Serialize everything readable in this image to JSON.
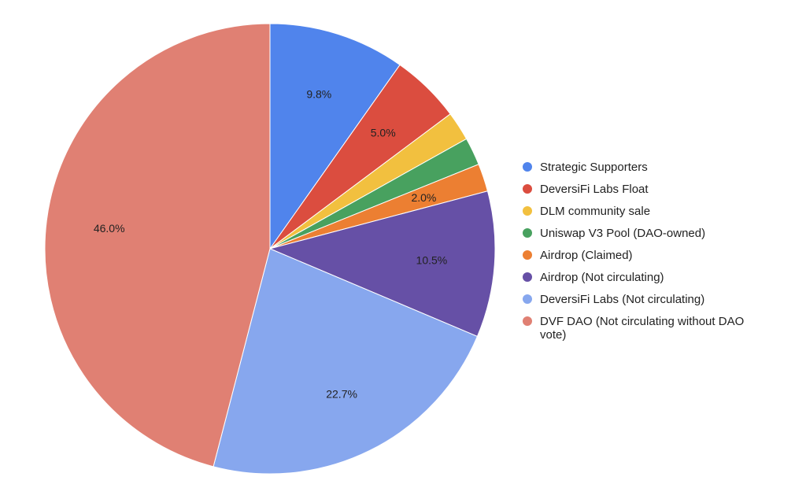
{
  "chart_data": {
    "type": "pie",
    "title": "",
    "legend_position": "right",
    "series": [
      {
        "name": "Strategic Supporters",
        "value": 9.8,
        "label": "9.8%",
        "color": "#5084ec"
      },
      {
        "name": "DeversiFi Labs Float",
        "value": 5.0,
        "label": "5.0%",
        "color": "#db4d3f"
      },
      {
        "name": "DLM community sale",
        "value": 2.1,
        "label": "",
        "color": "#f2c03f"
      },
      {
        "name": "Uniswap V3 Pool (DAO-owned)",
        "value": 2.0,
        "label": "",
        "color": "#48a15f"
      },
      {
        "name": "Airdrop (Claimed)",
        "value": 2.0,
        "label": "2.0%",
        "color": "#ec7f32"
      },
      {
        "name": "Airdrop (Not circulating)",
        "value": 10.5,
        "label": "10.5%",
        "color": "#6650a6"
      },
      {
        "name": "DeversiFi Labs (Not circulating)",
        "value": 22.7,
        "label": "22.7%",
        "color": "#87a7ee"
      },
      {
        "name": "DVF DAO (Not circulating without DAO vote)",
        "value": 46.0,
        "label": "46.0%",
        "color": "#e08073"
      }
    ]
  }
}
